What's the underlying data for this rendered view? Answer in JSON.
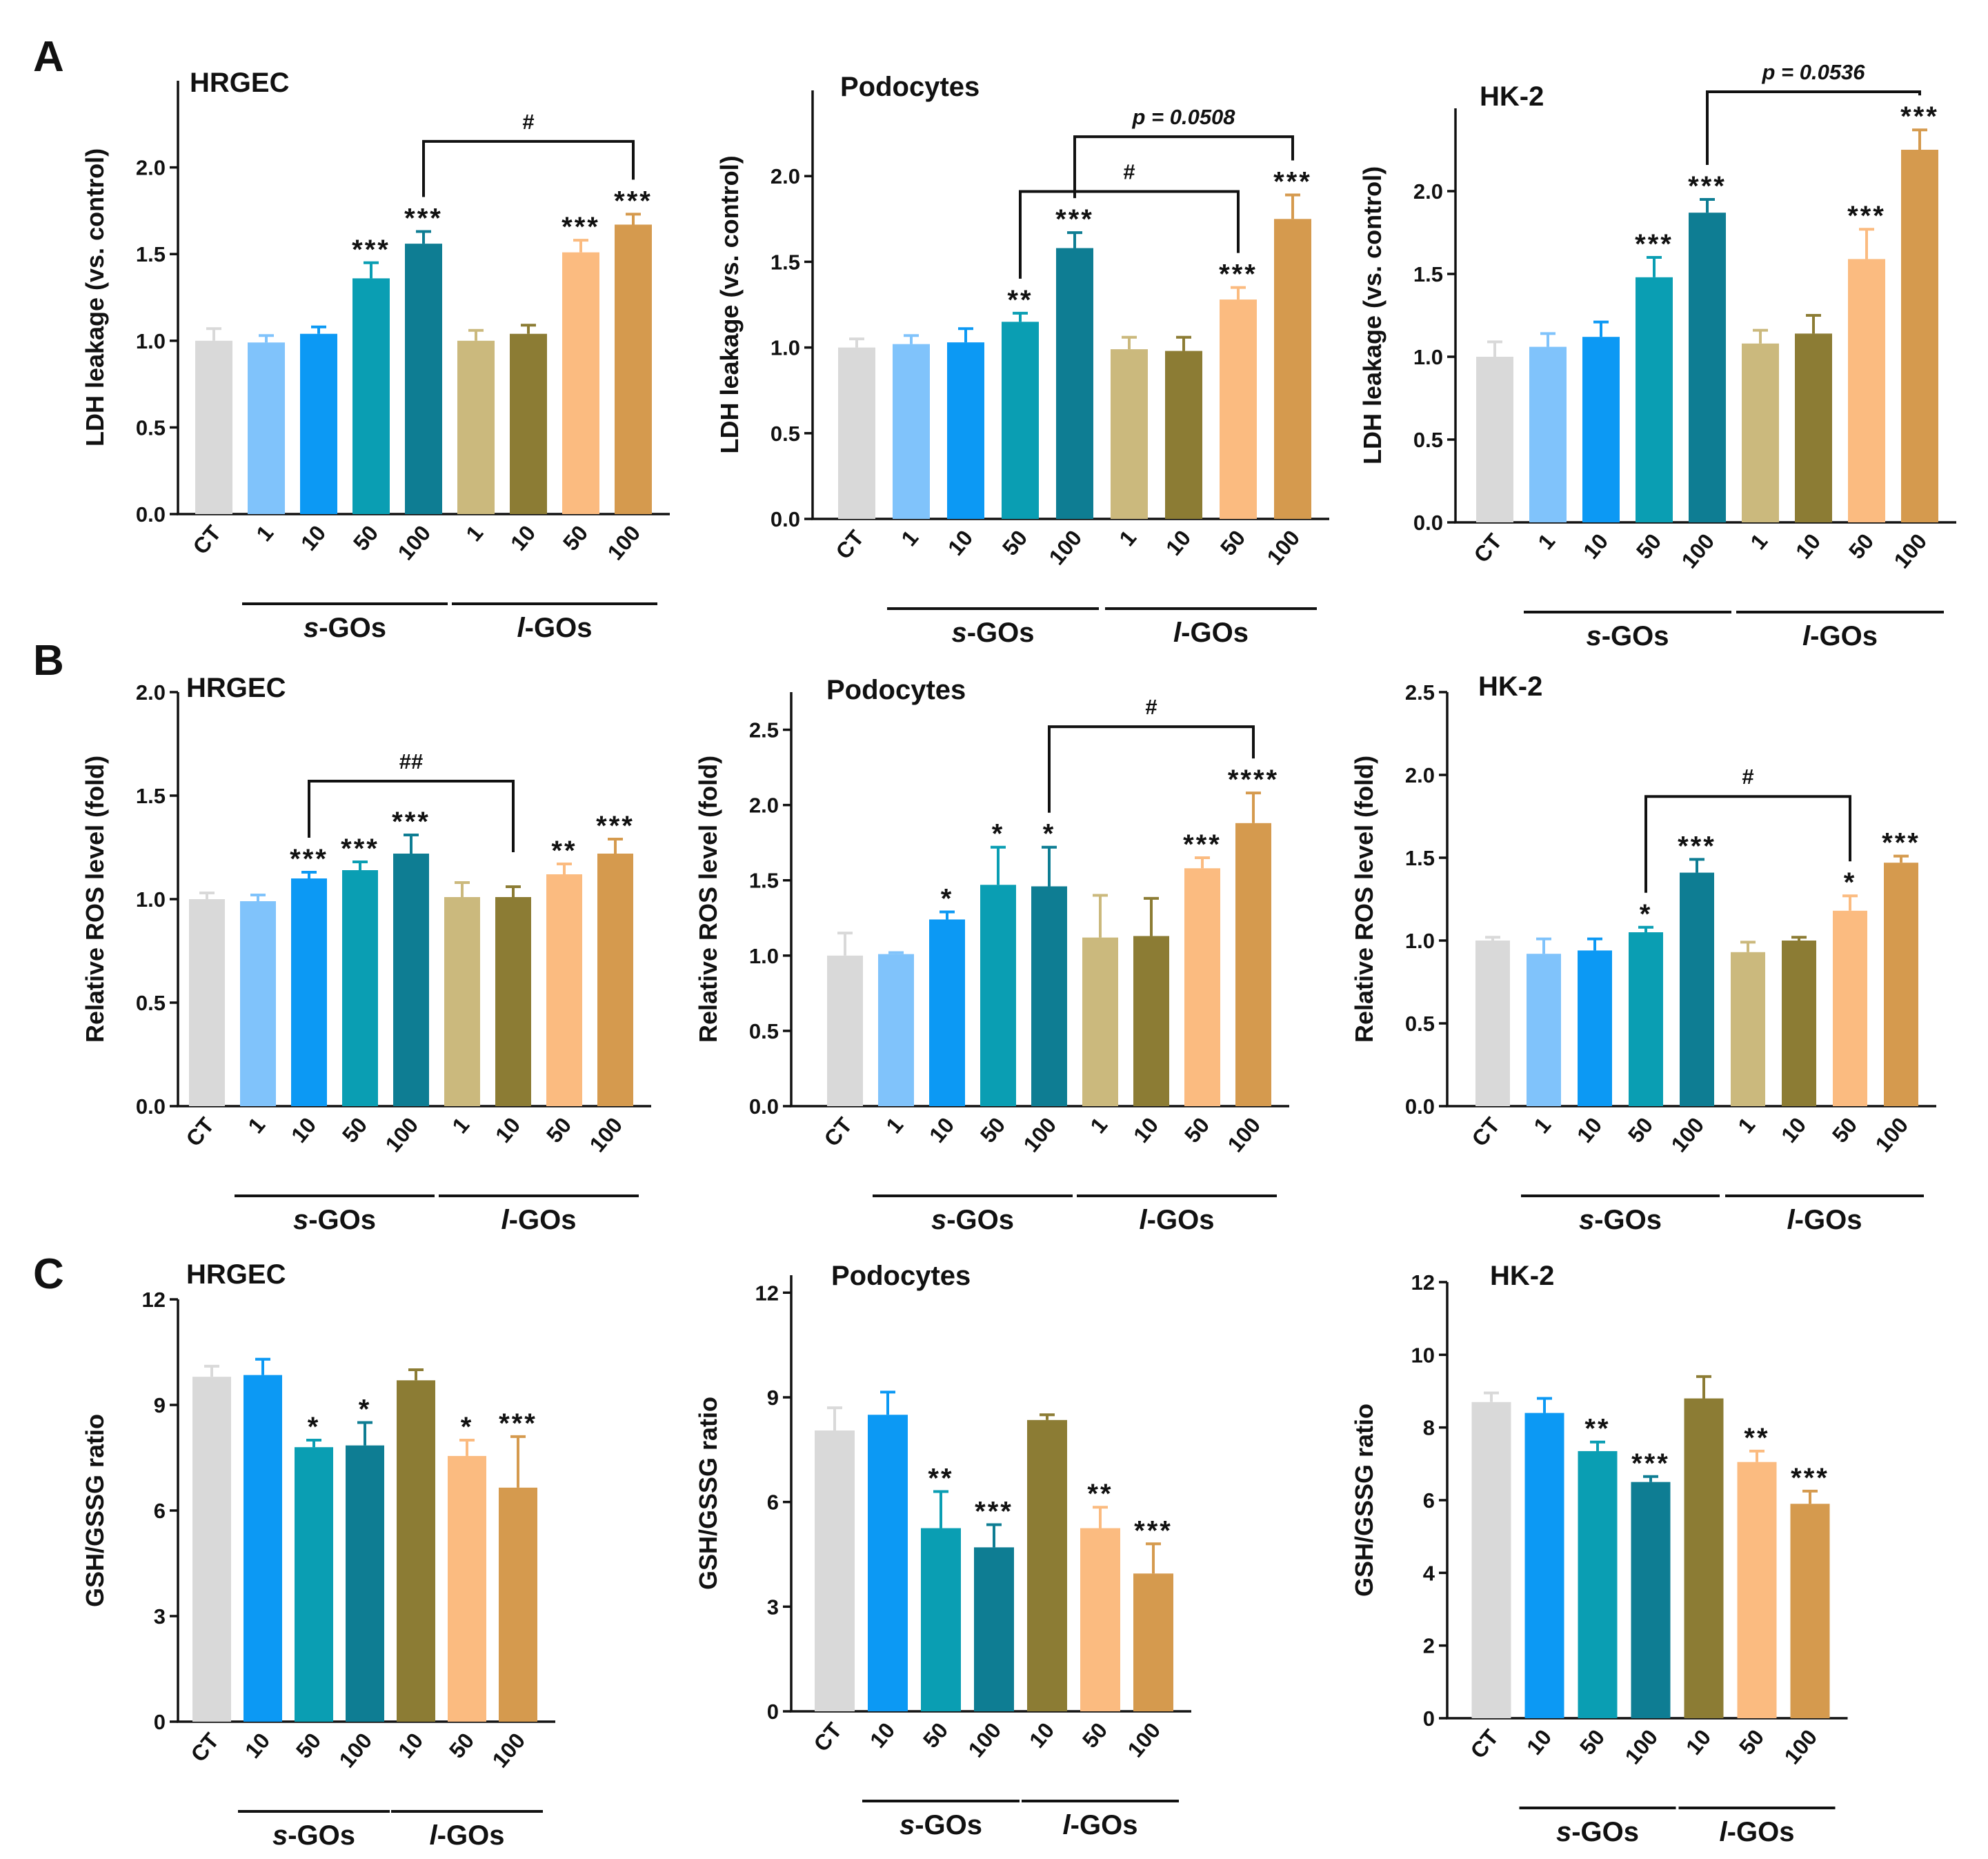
{
  "figure": {
    "panels": [
      {
        "letter": "A",
        "ylabel": "LDH leakage (vs. control)"
      },
      {
        "letter": "B",
        "ylabel": "Relative ROS level (fold)"
      },
      {
        "letter": "C",
        "ylabel": "GSH/GSSG ratio"
      }
    ],
    "group_labels": [
      {
        "italic": "s",
        "rest": "-GOs"
      },
      {
        "italic": "l",
        "rest": "-GOs"
      }
    ],
    "colors": {
      "CT": "#d9d9d9",
      "s1": "#80c3fb",
      "s10": "#0c99f4",
      "s50": "#0a9eb3",
      "s100": "#0e7d93",
      "l1": "#cbb97d",
      "l10": "#8c7c34",
      "l50": "#fbbb80",
      "l100": "#d59a4e"
    }
  },
  "chart_data": [
    {
      "id": "A-HRGEC",
      "type": "bar",
      "title": "HRGEC",
      "ylabel": "LDH leakage (vs. control)",
      "ylim": [
        0,
        2.5
      ],
      "ticks": [
        0.0,
        0.5,
        1.0,
        1.5,
        2.0
      ],
      "tick_labels": [
        "0.0",
        "0.5",
        "1.0",
        "1.5",
        "2.0"
      ],
      "categories": [
        "CT",
        "1",
        "10",
        "50",
        "100",
        "1",
        "10",
        "50",
        "100"
      ],
      "color_keys": [
        "CT",
        "s1",
        "s10",
        "s50",
        "s100",
        "l1",
        "l10",
        "l50",
        "l100"
      ],
      "values": [
        1.0,
        0.99,
        1.04,
        1.36,
        1.56,
        1.0,
        1.04,
        1.51,
        1.67
      ],
      "errors": [
        0.07,
        0.04,
        0.04,
        0.09,
        0.07,
        0.06,
        0.05,
        0.07,
        0.06
      ],
      "stars": [
        "",
        "",
        "",
        "***",
        "***",
        "",
        "",
        "***",
        "***"
      ],
      "groups": [
        {
          "label": 0,
          "from": 1,
          "to": 4
        },
        {
          "label": 1,
          "from": 5,
          "to": 8
        }
      ],
      "brackets": [
        {
          "from": 4,
          "to": 8,
          "label": "#",
          "y": 2.15
        }
      ]
    },
    {
      "id": "A-Podocytes",
      "type": "bar",
      "title": "Podocytes",
      "ylabel": "LDH leakage (vs. control)",
      "ylim": [
        0,
        2.5
      ],
      "ticks": [
        0.0,
        0.5,
        1.0,
        1.5,
        2.0
      ],
      "tick_labels": [
        "0.0",
        "0.5",
        "1.0",
        "1.5",
        "2.0"
      ],
      "categories": [
        "CT",
        "1",
        "10",
        "50",
        "100",
        "1",
        "10",
        "50",
        "100"
      ],
      "color_keys": [
        "CT",
        "s1",
        "s10",
        "s50",
        "s100",
        "l1",
        "l10",
        "l50",
        "l100"
      ],
      "values": [
        1.0,
        1.02,
        1.03,
        1.15,
        1.58,
        0.99,
        0.98,
        1.28,
        1.75
      ],
      "errors": [
        0.05,
        0.05,
        0.08,
        0.05,
        0.09,
        0.07,
        0.08,
        0.07,
        0.14
      ],
      "stars": [
        "",
        "",
        "",
        "**",
        "***",
        "",
        "",
        "***",
        "***"
      ],
      "groups": [
        {
          "label": 0,
          "from": 1,
          "to": 4
        },
        {
          "label": 1,
          "from": 5,
          "to": 8
        }
      ],
      "brackets": [
        {
          "from": 3,
          "to": 7,
          "label": "#",
          "y": 1.91
        },
        {
          "from": 4,
          "to": 8,
          "label": "p = 0.0508",
          "y": 2.23,
          "italic": true
        }
      ]
    },
    {
      "id": "A-HK2",
      "type": "bar",
      "title": "HK-2",
      "ylabel": "LDH leakage (vs. control)",
      "ylim": [
        0,
        2.5
      ],
      "ticks": [
        0.0,
        0.5,
        1.0,
        1.5,
        2.0
      ],
      "tick_labels": [
        "0.0",
        "0.5",
        "1.0",
        "1.5",
        "2.0"
      ],
      "categories": [
        "CT",
        "1",
        "10",
        "50",
        "100",
        "1",
        "10",
        "50",
        "100"
      ],
      "color_keys": [
        "CT",
        "s1",
        "s10",
        "s50",
        "s100",
        "l1",
        "l10",
        "l50",
        "l100"
      ],
      "values": [
        1.0,
        1.06,
        1.12,
        1.48,
        1.87,
        1.08,
        1.14,
        1.59,
        2.25
      ],
      "errors": [
        0.09,
        0.08,
        0.09,
        0.12,
        0.08,
        0.08,
        0.11,
        0.18,
        0.12
      ],
      "stars": [
        "",
        "",
        "",
        "***",
        "***",
        "",
        "",
        "***",
        "***"
      ],
      "groups": [
        {
          "label": 0,
          "from": 1,
          "to": 4
        },
        {
          "label": 1,
          "from": 5,
          "to": 8
        }
      ],
      "brackets": [
        {
          "from": 4,
          "to": 8,
          "label": "p = 0.0536",
          "y": 2.6,
          "italic": true
        }
      ]
    },
    {
      "id": "B-HRGEC",
      "type": "bar",
      "title": "HRGEC",
      "ylabel": "Relative ROS level (fold)",
      "ylim": [
        0,
        2.0
      ],
      "ticks": [
        0.0,
        0.5,
        1.0,
        1.5,
        2.0
      ],
      "tick_labels": [
        "0.0",
        "0.5",
        "1.0",
        "1.5",
        "2.0"
      ],
      "categories": [
        "CT",
        "1",
        "10",
        "50",
        "100",
        "1",
        "10",
        "50",
        "100"
      ],
      "color_keys": [
        "CT",
        "s1",
        "s10",
        "s50",
        "s100",
        "l1",
        "l10",
        "l50",
        "l100"
      ],
      "values": [
        1.0,
        0.99,
        1.1,
        1.14,
        1.22,
        1.01,
        1.01,
        1.12,
        1.22
      ],
      "errors": [
        0.03,
        0.03,
        0.03,
        0.04,
        0.09,
        0.07,
        0.05,
        0.05,
        0.07
      ],
      "stars": [
        "",
        "",
        "***",
        "***",
        "***",
        "",
        "",
        "**",
        "***"
      ],
      "groups": [
        {
          "label": 0,
          "from": 1,
          "to": 4
        },
        {
          "label": 1,
          "from": 5,
          "to": 8
        }
      ],
      "brackets": [
        {
          "from": 2,
          "to": 6,
          "label": "##",
          "y": 1.57
        }
      ]
    },
    {
      "id": "B-Podocytes",
      "type": "bar",
      "title": "Podocytes",
      "ylabel": "Relative ROS level (fold)",
      "ylim": [
        0,
        2.75
      ],
      "ticks": [
        0.0,
        0.5,
        1.0,
        1.5,
        2.0,
        2.5
      ],
      "tick_labels": [
        "0.0",
        "0.5",
        "1.0",
        "1.5",
        "2.0",
        "2.5"
      ],
      "categories": [
        "CT",
        "1",
        "10",
        "50",
        "100",
        "1",
        "10",
        "50",
        "100"
      ],
      "color_keys": [
        "CT",
        "s1",
        "s10",
        "s50",
        "s100",
        "l1",
        "l10",
        "l50",
        "l100"
      ],
      "values": [
        1.0,
        1.01,
        1.24,
        1.47,
        1.46,
        1.12,
        1.13,
        1.58,
        1.88
      ],
      "errors": [
        0.15,
        0.01,
        0.05,
        0.25,
        0.26,
        0.28,
        0.25,
        0.07,
        0.2
      ],
      "stars": [
        "",
        "",
        "*",
        "*",
        "*",
        "",
        "",
        "***",
        "****"
      ],
      "groups": [
        {
          "label": 0,
          "from": 1,
          "to": 4
        },
        {
          "label": 1,
          "from": 5,
          "to": 8
        }
      ],
      "brackets": [
        {
          "from": 4,
          "to": 8,
          "label": "#",
          "y": 2.52
        }
      ]
    },
    {
      "id": "B-HK2",
      "type": "bar",
      "title": "HK-2",
      "ylabel": "Relative ROS level (fold)",
      "ylim": [
        0,
        2.5
      ],
      "ticks": [
        0.0,
        0.5,
        1.0,
        1.5,
        2.0,
        2.5
      ],
      "tick_labels": [
        "0.0",
        "0.5",
        "1.0",
        "1.5",
        "2.0",
        "2.5"
      ],
      "categories": [
        "CT",
        "1",
        "10",
        "50",
        "100",
        "1",
        "10",
        "50",
        "100"
      ],
      "color_keys": [
        "CT",
        "s1",
        "s10",
        "s50",
        "s100",
        "l1",
        "l10",
        "l50",
        "l100"
      ],
      "values": [
        1.0,
        0.92,
        0.94,
        1.05,
        1.41,
        0.93,
        1.0,
        1.18,
        1.47
      ],
      "errors": [
        0.02,
        0.09,
        0.07,
        0.03,
        0.08,
        0.06,
        0.02,
        0.09,
        0.04
      ],
      "stars": [
        "",
        "",
        "",
        "*",
        "***",
        "",
        "",
        "*",
        "***"
      ],
      "groups": [
        {
          "label": 0,
          "from": 1,
          "to": 4
        },
        {
          "label": 1,
          "from": 5,
          "to": 8
        }
      ],
      "brackets": [
        {
          "from": 3,
          "to": 7,
          "label": "#",
          "y": 1.87
        }
      ]
    },
    {
      "id": "C-HRGEC",
      "type": "bar",
      "title": "HRGEC",
      "ylabel": "GSH/GSSG ratio",
      "ylim": [
        0,
        12
      ],
      "ticks": [
        0,
        3,
        6,
        9,
        12
      ],
      "tick_labels": [
        "0",
        "3",
        "6",
        "9",
        "12"
      ],
      "categories": [
        "CT",
        "10",
        "50",
        "100",
        "10",
        "50",
        "100"
      ],
      "color_keys": [
        "CT",
        "s10",
        "s50",
        "s100",
        "l10",
        "l50",
        "l100"
      ],
      "values": [
        9.8,
        9.85,
        7.8,
        7.85,
        9.7,
        7.55,
        6.65
      ],
      "errors": [
        0.3,
        0.45,
        0.2,
        0.65,
        0.3,
        0.45,
        1.45
      ],
      "stars": [
        "",
        "",
        "*",
        "*",
        "",
        "*",
        "***"
      ],
      "groups": [
        {
          "label": 0,
          "from": 1,
          "to": 3
        },
        {
          "label": 1,
          "from": 4,
          "to": 6
        }
      ],
      "brackets": []
    },
    {
      "id": "C-Podocytes",
      "type": "bar",
      "title": "Podocytes",
      "ylabel": "GSH/GSSG ratio",
      "ylim": [
        0,
        12.5
      ],
      "ticks": [
        0,
        3,
        6,
        9,
        12
      ],
      "tick_labels": [
        "0",
        "3",
        "6",
        "9",
        "12"
      ],
      "categories": [
        "CT",
        "10",
        "50",
        "100",
        "10",
        "50",
        "100"
      ],
      "color_keys": [
        "CT",
        "s10",
        "s50",
        "s100",
        "l10",
        "l50",
        "l100"
      ],
      "values": [
        8.05,
        8.5,
        5.25,
        4.7,
        8.35,
        5.25,
        3.95
      ],
      "errors": [
        0.65,
        0.65,
        1.05,
        0.65,
        0.15,
        0.6,
        0.85
      ],
      "stars": [
        "",
        "",
        "**",
        "***",
        "",
        "**",
        "***"
      ],
      "groups": [
        {
          "label": 0,
          "from": 1,
          "to": 3
        },
        {
          "label": 1,
          "from": 4,
          "to": 6
        }
      ],
      "brackets": []
    },
    {
      "id": "C-HK2",
      "type": "bar",
      "title": "HK-2",
      "ylabel": "GSH/GSSG ratio",
      "ylim": [
        0,
        12
      ],
      "ticks": [
        0,
        2,
        4,
        6,
        8,
        10,
        12
      ],
      "tick_labels": [
        "0",
        "2",
        "4",
        "6",
        "8",
        "10",
        "12"
      ],
      "categories": [
        "CT",
        "10",
        "50",
        "100",
        "10",
        "50",
        "100"
      ],
      "color_keys": [
        "CT",
        "s10",
        "s50",
        "s100",
        "l10",
        "l50",
        "l100"
      ],
      "values": [
        8.7,
        8.4,
        7.35,
        6.5,
        8.8,
        7.05,
        5.9
      ],
      "errors": [
        0.25,
        0.4,
        0.25,
        0.15,
        0.6,
        0.3,
        0.35
      ],
      "stars": [
        "",
        "",
        "**",
        "***",
        "",
        "**",
        "***"
      ],
      "groups": [
        {
          "label": 0,
          "from": 1,
          "to": 3
        },
        {
          "label": 1,
          "from": 4,
          "to": 6
        }
      ],
      "brackets": []
    }
  ]
}
